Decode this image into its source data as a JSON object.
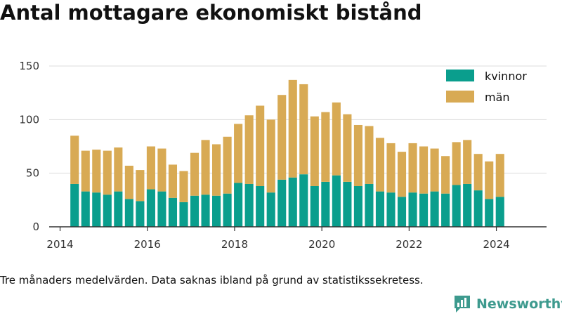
{
  "title": "Antal mottagare ekonomiskt bistånd",
  "footnote": "Tre månaders medelvärden. Data saknas ibland på grund av statistikssekretess.",
  "brand": {
    "name": "Newsworthy",
    "icon": "newsworthy-logo-icon"
  },
  "colors": {
    "kvinnor": "#0a9e8d",
    "man": "#d8aa54",
    "grid": "#dcdcdc",
    "axis": "#333333",
    "brand": "#3d9a8e"
  },
  "chart_data": {
    "type": "bar",
    "stacked": true,
    "x_start": "2014-05",
    "x_step_months": 3,
    "xlim": [
      2013.75,
      2025.15
    ],
    "ylim": [
      0,
      150
    ],
    "yticks": [
      0,
      50,
      100,
      150
    ],
    "xticks": [
      2014,
      2016,
      2018,
      2020,
      2022,
      2024
    ],
    "grid": true,
    "legend_position": "top-right",
    "series": [
      {
        "name": "kvinnor",
        "values": [
          40,
          33,
          32,
          30,
          33,
          26,
          24,
          35,
          33,
          27,
          23,
          29,
          30,
          29,
          31,
          41,
          40,
          38,
          32,
          44,
          46,
          49,
          38,
          42,
          48,
          42,
          38,
          40,
          33,
          32,
          28,
          32,
          31,
          33,
          31,
          39,
          40,
          34,
          26,
          28
        ]
      },
      {
        "name": "män",
        "values": [
          45,
          38,
          40,
          41,
          41,
          31,
          29,
          40,
          40,
          31,
          29,
          40,
          51,
          48,
          53,
          55,
          64,
          75,
          68,
          79,
          91,
          84,
          65,
          65,
          68,
          63,
          57,
          54,
          50,
          46,
          42,
          46,
          44,
          40,
          35,
          40,
          41,
          34,
          35,
          40
        ]
      }
    ]
  }
}
